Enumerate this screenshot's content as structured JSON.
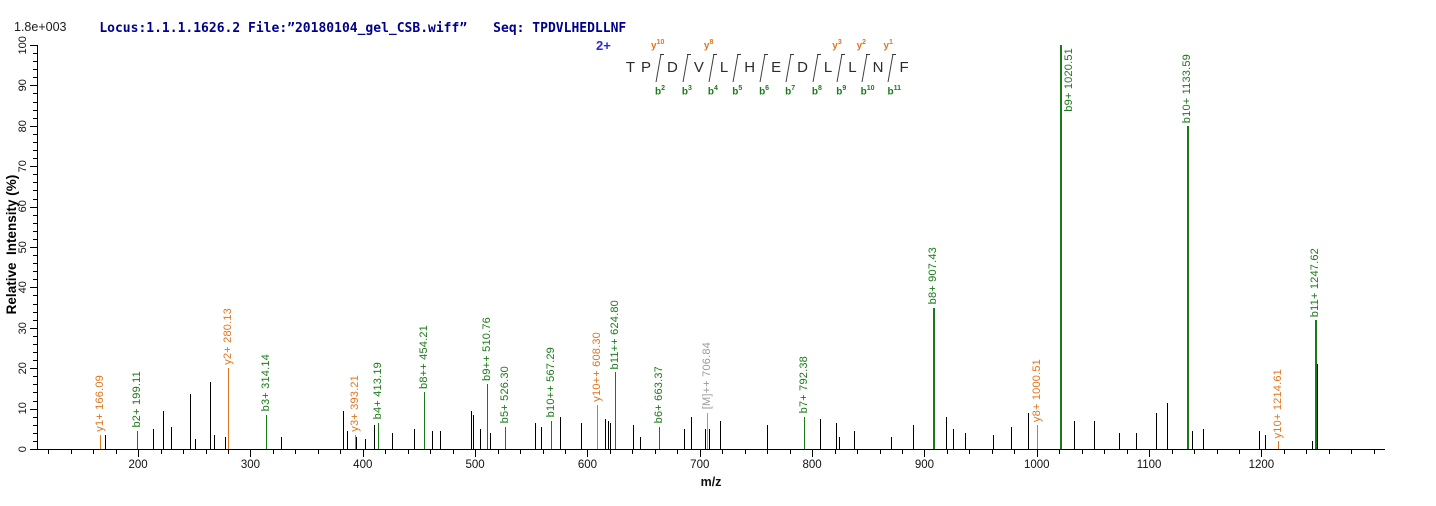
{
  "header": {
    "locus_file": "Locus:1.1.1.1626.2 File:”20180104_gel_CSB.wiff”",
    "seq_line": "Seq: TPDVLHEDLLNF"
  },
  "peptide": {
    "charge_label": "2+",
    "sequence": [
      "T",
      "P",
      "D",
      "V",
      "L",
      "H",
      "E",
      "D",
      "L",
      "L",
      "N",
      "F"
    ],
    "fragments": [
      {
        "after": 2,
        "y": "y10",
        "b": "b2"
      },
      {
        "after": 3,
        "y": null,
        "b": "b3"
      },
      {
        "after": 4,
        "y": "y8",
        "b": "b4"
      },
      {
        "after": 5,
        "y": null,
        "b": "b5"
      },
      {
        "after": 6,
        "y": null,
        "b": "b6"
      },
      {
        "after": 7,
        "y": null,
        "b": "b7"
      },
      {
        "after": 8,
        "y": null,
        "b": "b8"
      },
      {
        "after": 9,
        "y": "y3",
        "b": "b9"
      },
      {
        "after": 10,
        "y": "y2",
        "b": "b10"
      },
      {
        "after": 11,
        "y": "y1",
        "b": "b11"
      }
    ]
  },
  "colors": {
    "header_text": "#00008b",
    "charge_label": "#2a2ad0",
    "b_ion": "#1a7a1a",
    "y_ion": "#e0751f",
    "precursor": "#9a9a9a",
    "unassigned_peak": "#000000",
    "axis": "#000000"
  },
  "chart_data": {
    "type": "bar",
    "subtype": "centroid MS/MS mass spectrum",
    "title": "",
    "xlabel": "m/z",
    "ylabel": "Relative  Intensity (%)",
    "base_peak_intensity": "1.8e+003",
    "xlim": [
      110,
      1310
    ],
    "ylim": [
      0,
      100
    ],
    "x_major_tick_start": 200,
    "x_major_tick_end": 1200,
    "x_major_tick_step": 100,
    "x_minor_tick_step": 20,
    "y_major_tick_step": 10,
    "y_minor_tick_step": 2,
    "assigned_peaks": [
      {
        "label": "y1+ 166.09",
        "mz": 166.09,
        "intensity": 3.5,
        "ion": "y"
      },
      {
        "label": "b2+ 199.11",
        "mz": 199.11,
        "intensity": 4.5,
        "ion": "b"
      },
      {
        "label": "y2+ 280.13",
        "mz": 280.13,
        "intensity": 20,
        "ion": "y"
      },
      {
        "label": "b3+ 314.14",
        "mz": 314.14,
        "intensity": 8.5,
        "ion": "b"
      },
      {
        "label": "y3+ 393.21",
        "mz": 393.21,
        "intensity": 3.5,
        "ion": "y"
      },
      {
        "label": "b4+ 413.19",
        "mz": 413.19,
        "intensity": 6.5,
        "ion": "b"
      },
      {
        "label": "b8++ 454.21",
        "mz": 454.21,
        "intensity": 14,
        "ion": "b"
      },
      {
        "label": "b9++ 510.76",
        "mz": 510.76,
        "intensity": 16,
        "ion": "b"
      },
      {
        "label": "b5+ 526.30",
        "mz": 526.3,
        "intensity": 5.5,
        "ion": "b"
      },
      {
        "label": "b10++ 567.29",
        "mz": 567.29,
        "intensity": 7,
        "ion": "b"
      },
      {
        "label": "y10++ 608.30",
        "mz": 608.3,
        "intensity": 11,
        "ion": "y"
      },
      {
        "label": "b11++ 624.80",
        "mz": 624.8,
        "intensity": 19,
        "ion": "b"
      },
      {
        "label": "b6+ 663.37",
        "mz": 663.37,
        "intensity": 5.5,
        "ion": "b"
      },
      {
        "label": "[M]++ 706.84",
        "mz": 706.84,
        "intensity": 9,
        "ion": "M"
      },
      {
        "label": "b7+ 792.38",
        "mz": 792.38,
        "intensity": 8,
        "ion": "b"
      },
      {
        "label": "b8+ 907.43",
        "mz": 907.43,
        "intensity": 35,
        "ion": "b"
      },
      {
        "label": "y8+ 1000.51",
        "mz": 1000.51,
        "intensity": 6,
        "ion": "y"
      },
      {
        "label": "b9+ 1020.51",
        "mz": 1020.51,
        "intensity": 100,
        "ion": "b"
      },
      {
        "label": "b10+ 1133.59",
        "mz": 1133.59,
        "intensity": 80,
        "ion": "b"
      },
      {
        "label": "y10+ 1214.61",
        "mz": 1214.61,
        "intensity": 2,
        "ion": "y"
      },
      {
        "label": "b11+ 1247.62",
        "mz": 1247.62,
        "intensity": 32,
        "ion": "b"
      }
    ],
    "unassigned_peaks": [
      [
        170.5,
        3.5
      ],
      [
        213,
        5
      ],
      [
        222,
        9.5
      ],
      [
        229,
        5.5
      ],
      [
        246,
        13.5
      ],
      [
        251,
        2.5
      ],
      [
        264,
        16.5
      ],
      [
        268,
        3.5
      ],
      [
        277,
        3
      ],
      [
        327,
        3
      ],
      [
        382,
        9.5
      ],
      [
        386,
        4.5
      ],
      [
        394,
        3
      ],
      [
        402,
        2.5
      ],
      [
        410,
        6
      ],
      [
        426,
        4
      ],
      [
        446,
        5
      ],
      [
        462,
        4.5
      ],
      [
        469,
        4.5
      ],
      [
        496,
        9.5
      ],
      [
        498,
        8.5
      ],
      [
        504,
        5
      ],
      [
        513,
        4
      ],
      [
        553,
        6.5
      ],
      [
        559,
        5.5
      ],
      [
        576,
        8
      ],
      [
        594,
        6.5
      ],
      [
        616,
        7.5
      ],
      [
        618,
        7
      ],
      [
        620,
        6.5
      ],
      [
        641,
        6
      ],
      [
        647,
        3
      ],
      [
        686,
        5
      ],
      [
        692,
        8
      ],
      [
        705,
        5
      ],
      [
        708,
        5
      ],
      [
        718,
        7
      ],
      [
        760,
        6
      ],
      [
        807,
        7.5
      ],
      [
        821,
        6.5
      ],
      [
        824,
        3
      ],
      [
        837,
        4.5
      ],
      [
        870,
        3
      ],
      [
        890,
        6
      ],
      [
        919,
        8
      ],
      [
        925,
        5
      ],
      [
        936,
        4
      ],
      [
        961,
        3.5
      ],
      [
        977,
        5.5
      ],
      [
        992,
        9
      ],
      [
        1022,
        4
      ],
      [
        1033,
        7
      ],
      [
        1051,
        7
      ],
      [
        1073,
        4
      ],
      [
        1088,
        4
      ],
      [
        1106,
        9
      ],
      [
        1116,
        11.5
      ],
      [
        1135,
        4.5
      ],
      [
        1138,
        4.5
      ],
      [
        1148,
        5
      ],
      [
        1198,
        4.5
      ],
      [
        1203,
        3.5
      ],
      [
        1245,
        2
      ],
      [
        1248,
        21
      ]
    ]
  }
}
